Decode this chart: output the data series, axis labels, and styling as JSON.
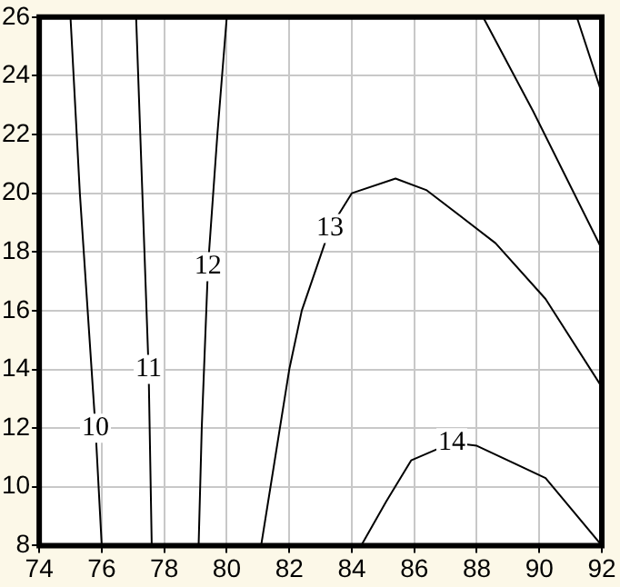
{
  "chart_data": {
    "type": "line",
    "xlim": [
      74,
      92
    ],
    "ylim": [
      8,
      26
    ],
    "xticks": [
      74,
      76,
      78,
      80,
      82,
      84,
      86,
      88,
      90,
      92
    ],
    "yticks": [
      8,
      10,
      12,
      14,
      16,
      18,
      20,
      22,
      24,
      26
    ],
    "grid": true,
    "legend": false,
    "marker": "none",
    "line_style": "solid",
    "series": [
      {
        "name": "10",
        "color": "#000000",
        "x": [
          75.0,
          75.3,
          75.8,
          75.9,
          76.0
        ],
        "values": [
          26,
          20,
          12,
          10,
          8
        ]
      },
      {
        "name": "11",
        "color": "#000000",
        "x": [
          77.1,
          77.3,
          77.5,
          77.55,
          77.6
        ],
        "values": [
          26,
          20,
          14,
          11,
          8
        ]
      },
      {
        "name": "12",
        "color": "#000000",
        "x": [
          80.0,
          79.7,
          79.4,
          79.2,
          79.1
        ],
        "values": [
          26,
          22,
          17.5,
          12,
          8
        ]
      },
      {
        "name": "13",
        "color": "#000000",
        "x": [
          81.1,
          81.4,
          81.7,
          82.0,
          82.4,
          83.3,
          84.0,
          85.4,
          86.4,
          88.6,
          90.2,
          92
        ],
        "values": [
          8,
          10,
          12,
          14,
          16,
          18.8,
          20.0,
          20.5,
          20.1,
          18.3,
          16.4,
          13.4
        ]
      },
      {
        "name": "14",
        "color": "#000000",
        "x": [
          84.3,
          85.1,
          85.9,
          87.2,
          88.0,
          90.2,
          92
        ],
        "values": [
          8,
          9.5,
          10.9,
          11.5,
          11.4,
          10.3,
          8
        ]
      },
      {
        "color": "#000000",
        "x": [
          88.2,
          89.8,
          92
        ],
        "values": [
          26,
          22.8,
          18.1
        ]
      },
      {
        "color": "#000000",
        "x": [
          91.2,
          92
        ],
        "values": [
          26,
          23.4
        ]
      }
    ]
  }
}
